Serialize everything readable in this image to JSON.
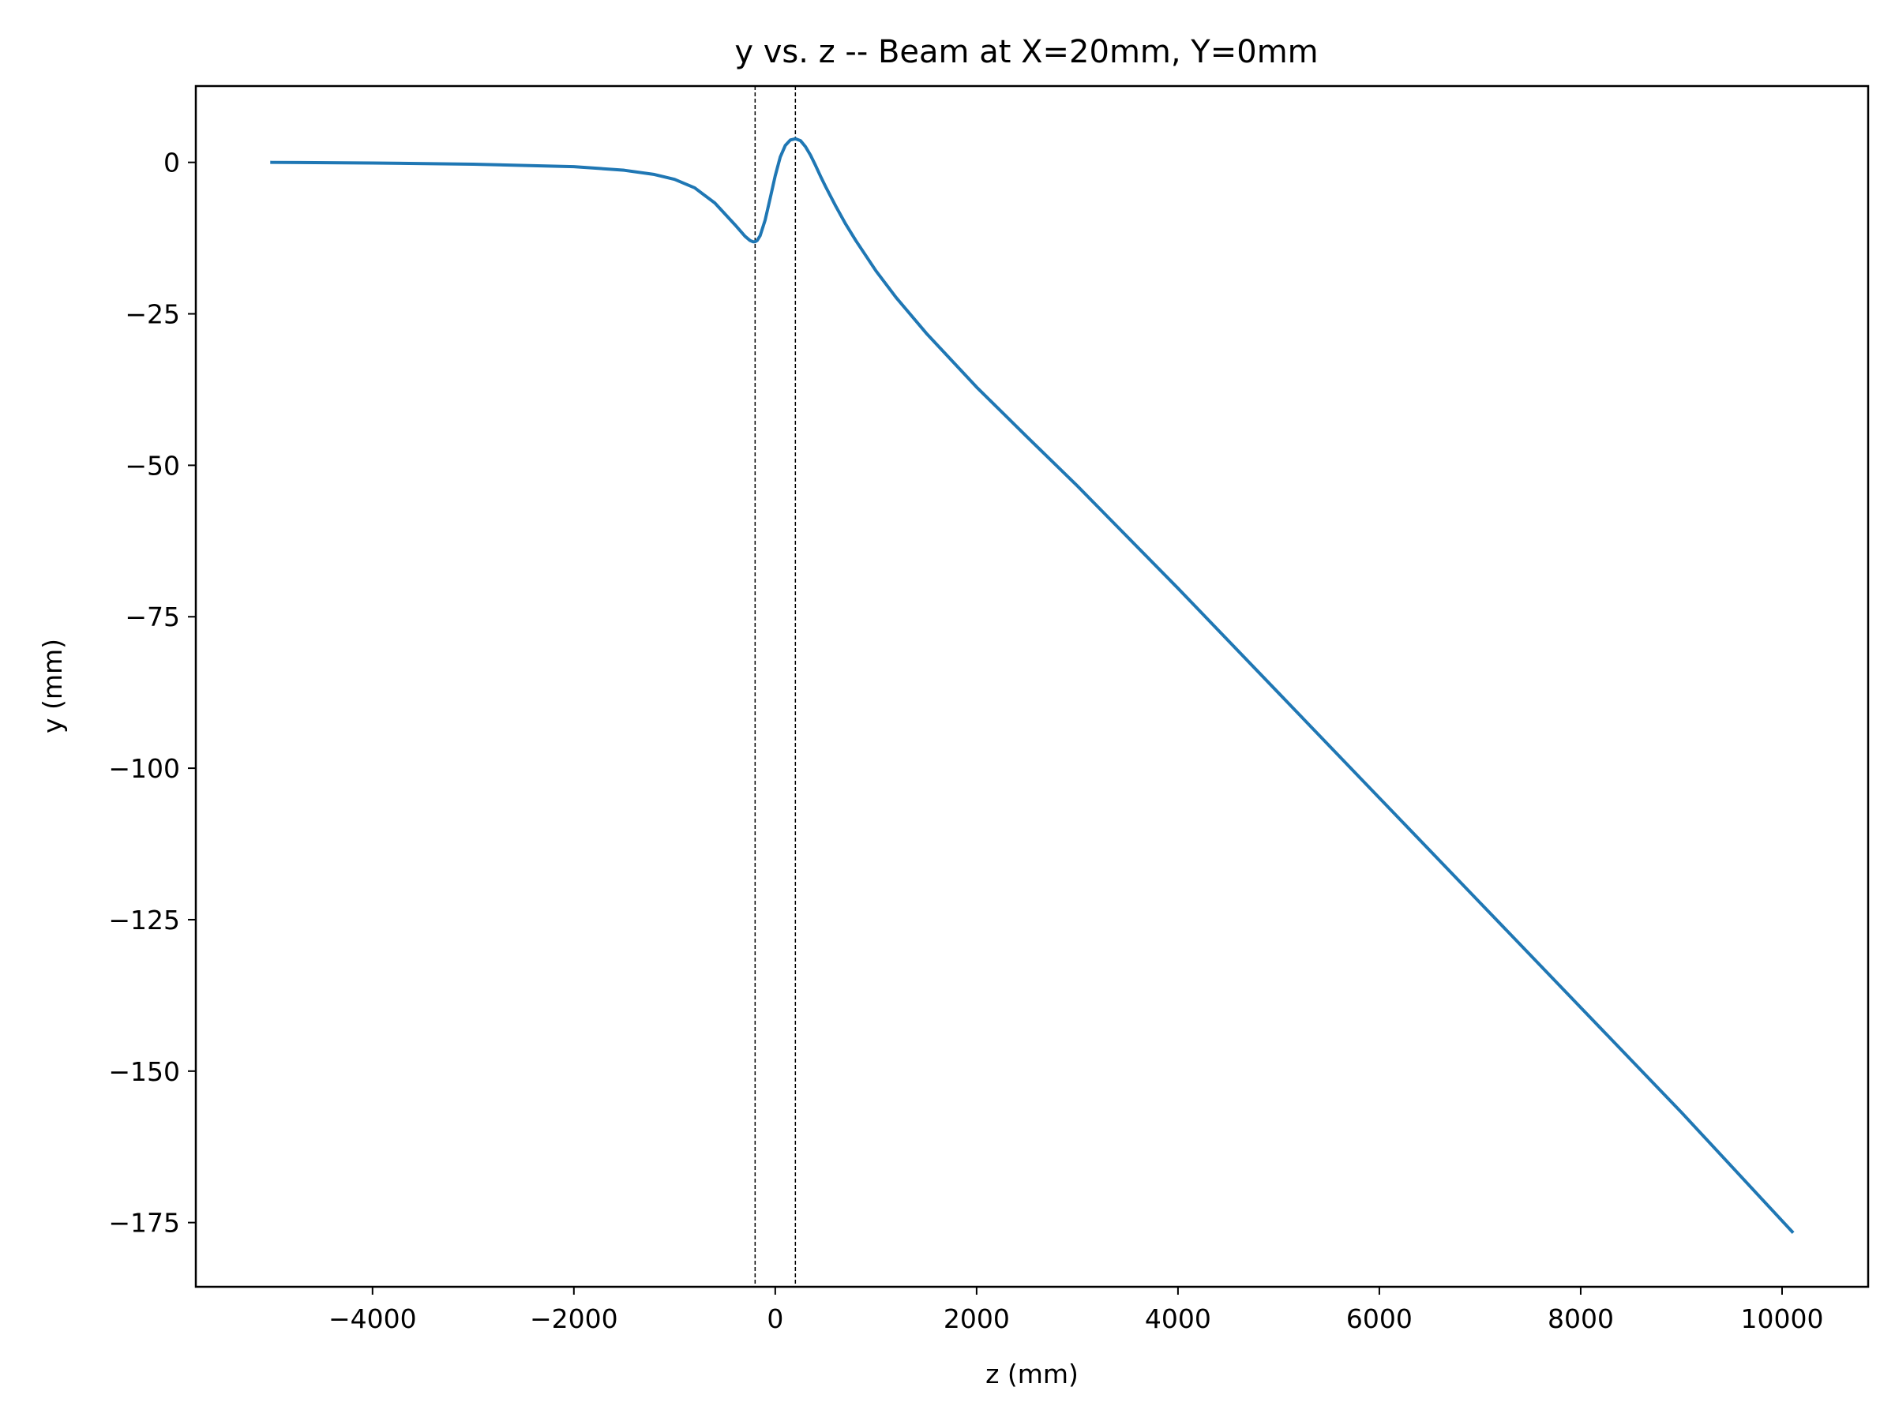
{
  "chart_data": {
    "type": "line",
    "title": "y vs. z -- Beam at X=20mm, Y=0mm",
    "xlabel": "z (mm)",
    "ylabel": "y (mm)",
    "xlim": [
      -5755,
      10855
    ],
    "ylim": [
      -185.6,
      12.6
    ],
    "grid": false,
    "legend": "none",
    "x_ticks": [
      -4000,
      -2000,
      0,
      2000,
      4000,
      6000,
      8000,
      10000
    ],
    "x_tick_labels": [
      "−4000",
      "−2000",
      "0",
      "2000",
      "4000",
      "6000",
      "8000",
      "10000"
    ],
    "y_ticks": [
      0,
      -25,
      -50,
      -75,
      -100,
      -125,
      -150,
      -175
    ],
    "y_tick_labels": [
      "0",
      "−25",
      "−50",
      "−75",
      "−100",
      "−125",
      "−150",
      "−175"
    ],
    "vlines": [
      -200,
      200
    ],
    "series": [
      {
        "color": "#1f77b4",
        "x": [
          -5000,
          -4000,
          -3000,
          -2000,
          -1500,
          -1200,
          -1000,
          -800,
          -600,
          -400,
          -300,
          -250,
          -220,
          -200,
          -180,
          -150,
          -100,
          -50,
          0,
          50,
          100,
          150,
          200,
          250,
          300,
          350,
          400,
          450,
          500,
          600,
          700,
          800,
          1000,
          1200,
          1500,
          2000,
          2500,
          3000,
          4000,
          5000,
          6000,
          7000,
          8000,
          9000,
          10100
        ],
        "y": [
          0.0,
          -0.1,
          -0.3,
          -0.7,
          -1.3,
          -2.0,
          -2.8,
          -4.2,
          -6.7,
          -10.3,
          -12.2,
          -12.9,
          -13.1,
          -13.1,
          -12.9,
          -12.1,
          -9.5,
          -5.9,
          -2.2,
          0.9,
          2.8,
          3.7,
          3.9,
          3.6,
          2.6,
          1.2,
          -0.5,
          -2.3,
          -4.0,
          -7.2,
          -10.2,
          -12.9,
          -17.9,
          -22.3,
          -28.2,
          -37.1,
          -45.3,
          -53.4,
          -70.3,
          -87.6,
          -104.9,
          -122.2,
          -139.5,
          -156.8,
          -176.5
        ]
      }
    ]
  }
}
